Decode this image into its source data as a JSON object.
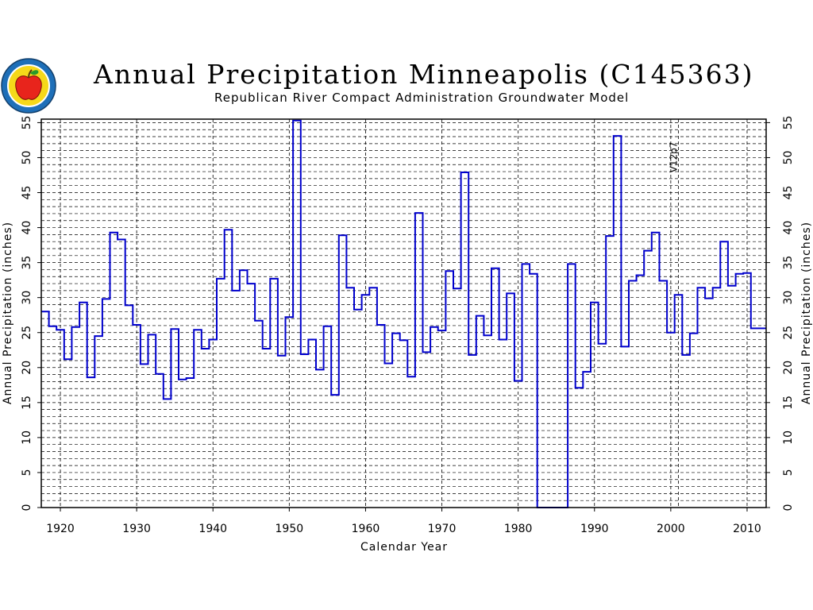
{
  "header": {
    "title": "Annual Precipitation Minneapolis (C145363)",
    "subtitle": "Republican River Compact Administration Groundwater Model"
  },
  "logo": {
    "icon": "apple-seal-icon",
    "colors": {
      "ring": "#1e6fb8",
      "apple": "#e8241c",
      "leaf": "#2a9a2a",
      "center": "#f5d81a"
    }
  },
  "chart_data": {
    "type": "line",
    "step": true,
    "title": "Annual Precipitation Minneapolis (C145363)",
    "subtitle": "Republican River Compact Administration Groundwater Model",
    "xlabel": "Calendar Year",
    "ylabel": "Annual Precipitation (inches)",
    "ylabel_right": "Annual Precipitation (inches)",
    "xlim": [
      1917.5,
      2012.5
    ],
    "ylim": [
      0,
      55.5
    ],
    "xticks": [
      1920,
      1930,
      1940,
      1950,
      1960,
      1970,
      1980,
      1990,
      2000,
      2010
    ],
    "yticks": [
      0,
      5,
      10,
      15,
      20,
      25,
      30,
      35,
      40,
      45,
      50,
      55
    ],
    "grid": true,
    "series_color": "#0000cc",
    "annotation": {
      "x": 2001,
      "text": "V12p7"
    },
    "series": [
      {
        "x": [
          1918,
          1919,
          1920,
          1921,
          1922,
          1923,
          1924,
          1925,
          1926,
          1927,
          1928,
          1929,
          1930,
          1931,
          1932,
          1933,
          1934,
          1935,
          1936,
          1937,
          1938,
          1939,
          1940,
          1941,
          1942,
          1943,
          1944,
          1945,
          1946,
          1947,
          1948,
          1949,
          1950,
          1951,
          1952,
          1953,
          1954,
          1955,
          1956,
          1957,
          1958,
          1959,
          1960,
          1961,
          1962,
          1963,
          1964,
          1965,
          1966,
          1967,
          1968,
          1969,
          1970,
          1971,
          1972,
          1973,
          1974,
          1975,
          1976,
          1977,
          1978,
          1979,
          1980,
          1981,
          1982,
          1983,
          1984,
          1985,
          1986,
          1987,
          1988,
          1989,
          1990,
          1991,
          1992,
          1993,
          1994,
          1995,
          1996,
          1997,
          1998,
          1999,
          2000,
          2001,
          2002,
          2003,
          2004,
          2005,
          2006,
          2007,
          2008,
          2009,
          2010,
          2011,
          2012
        ],
        "values": [
          28.0,
          25.9,
          25.4,
          21.2,
          25.8,
          29.3,
          18.6,
          24.5,
          29.8,
          39.3,
          38.3,
          28.9,
          26.1,
          20.5,
          24.7,
          19.1,
          15.5,
          25.5,
          18.3,
          18.5,
          25.4,
          22.7,
          24.0,
          32.7,
          39.7,
          31.0,
          33.9,
          32.0,
          26.7,
          22.7,
          32.7,
          21.7,
          27.2,
          55.3,
          21.9,
          24.0,
          19.7,
          25.9,
          16.1,
          38.9,
          31.4,
          28.3,
          30.4,
          31.4,
          26.1,
          20.6,
          24.9,
          23.9,
          18.7,
          42.1,
          22.2,
          25.8,
          25.3,
          33.8,
          31.3,
          47.9,
          21.8,
          27.4,
          24.6,
          34.2,
          24.0,
          30.6,
          18.1,
          34.8,
          33.4,
          0,
          0,
          0,
          0,
          34.8,
          17.1,
          19.4,
          29.3,
          23.4,
          38.8,
          53.1,
          23.0,
          32.4,
          33.2,
          36.7,
          39.3,
          32.4,
          25.0,
          30.4,
          21.8,
          24.9,
          31.4,
          29.9,
          31.4,
          38.0,
          31.7,
          33.4,
          33.5,
          25.6,
          25.6
        ]
      }
    ]
  }
}
